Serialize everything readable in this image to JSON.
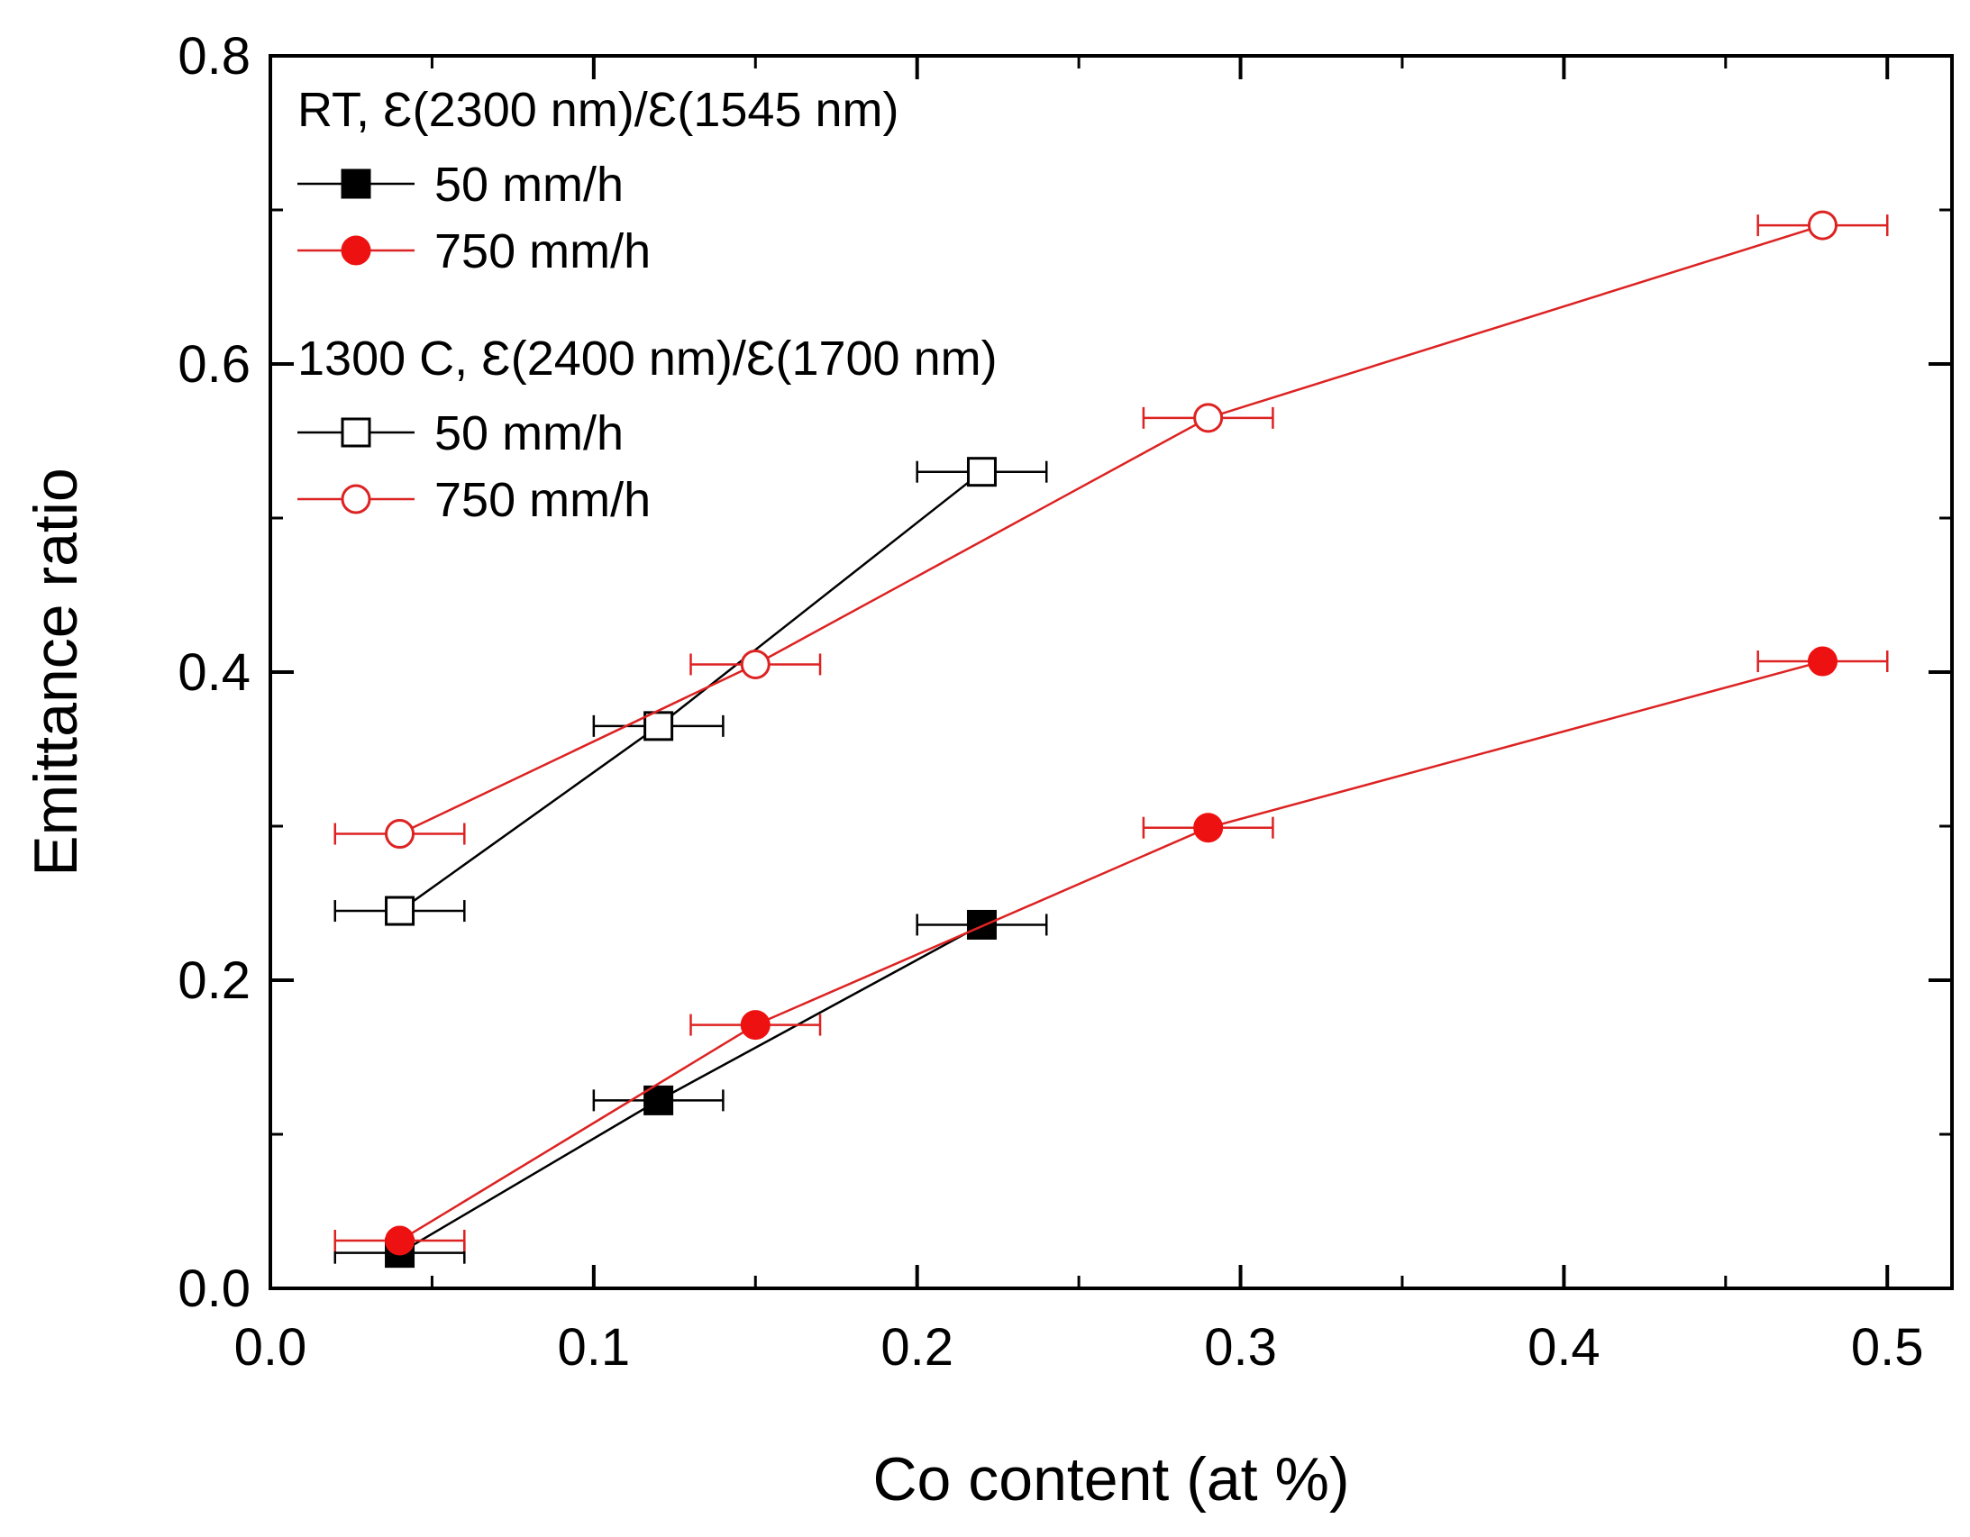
{
  "chart_data": {
    "type": "scatter",
    "xlabel": "Co content (at %)",
    "ylabel": "Emittance ratio",
    "xlim": [
      0.0,
      0.52
    ],
    "ylim": [
      0.0,
      0.8
    ],
    "x_ticks": [
      "0.0",
      "0.1",
      "0.2",
      "0.3",
      "0.4",
      "0.5"
    ],
    "x_tick_values": [
      0.0,
      0.1,
      0.2,
      0.3,
      0.4,
      0.5
    ],
    "y_ticks": [
      "0.0",
      "0.2",
      "0.4",
      "0.6",
      "0.8"
    ],
    "y_tick_values": [
      0.0,
      0.2,
      0.4,
      0.6,
      0.8
    ],
    "grid": false,
    "legend_position": "top-left",
    "legend_groups": [
      {
        "title": "RT, Ɛ(2300 nm)/Ɛ(1545 nm)",
        "entries": [
          {
            "series_index": 0,
            "label": "50 mm/h"
          },
          {
            "series_index": 1,
            "label": "750 mm/h"
          }
        ]
      },
      {
        "title": "1300 C, Ɛ(2400 nm)/Ɛ(1700 nm)",
        "entries": [
          {
            "series_index": 2,
            "label": "50 mm/h"
          },
          {
            "series_index": 3,
            "label": "750 mm/h"
          }
        ]
      }
    ],
    "series": [
      {
        "name": "RT 50 mm/h",
        "marker": "square",
        "filled": true,
        "color": "#000000",
        "line_color": "#000000",
        "x": [
          0.04,
          0.12,
          0.22
        ],
        "y": [
          0.023,
          0.122,
          0.236
        ],
        "x_err": [
          0.02,
          0.02,
          0.02
        ]
      },
      {
        "name": "RT 750 mm/h",
        "marker": "circle",
        "filled": true,
        "color": "#ee1111",
        "line_color": "#dd2222",
        "x": [
          0.04,
          0.15,
          0.29,
          0.48
        ],
        "y": [
          0.031,
          0.171,
          0.299,
          0.407
        ],
        "x_err": [
          0.02,
          0.02,
          0.02,
          0.02
        ]
      },
      {
        "name": "1300 C 50 mm/h",
        "marker": "square",
        "filled": false,
        "color": "#000000",
        "line_color": "#000000",
        "x": [
          0.04,
          0.12,
          0.22
        ],
        "y": [
          0.245,
          0.365,
          0.53
        ],
        "x_err": [
          0.02,
          0.02,
          0.02
        ]
      },
      {
        "name": "1300 C 750 mm/h",
        "marker": "circle",
        "filled": false,
        "color": "#dd2222",
        "line_color": "#dd2222",
        "x": [
          0.04,
          0.15,
          0.29,
          0.48
        ],
        "y": [
          0.295,
          0.405,
          0.565,
          0.69
        ],
        "x_err": [
          0.02,
          0.02,
          0.02,
          0.02
        ]
      }
    ]
  }
}
